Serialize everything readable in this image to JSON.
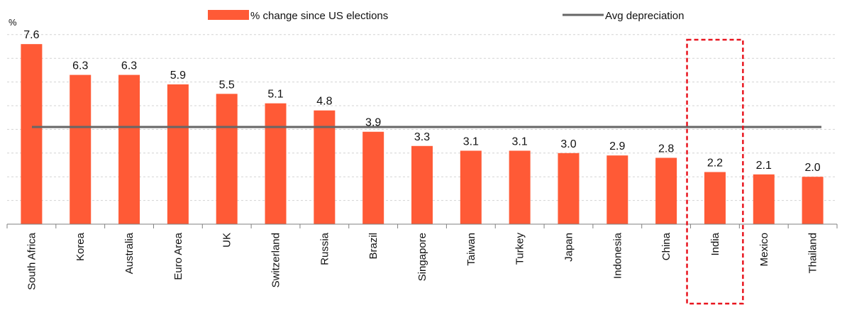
{
  "chart_data": {
    "type": "bar",
    "unit_label": "%",
    "categories": [
      "South Africa",
      "Korea",
      "Australia",
      "Euro Area",
      "UK",
      "Switzerland",
      "Russia",
      "Brazil",
      "Singapore",
      "Taiwan",
      "Turkey",
      "Japan",
      "Indonesia",
      "China",
      "India",
      "Mexico",
      "Thailand"
    ],
    "series": [
      {
        "name": "% change since US elections",
        "values": [
          7.6,
          6.3,
          6.3,
          5.9,
          5.5,
          5.1,
          4.8,
          3.9,
          3.3,
          3.1,
          3.1,
          3.0,
          2.9,
          2.8,
          2.2,
          2.1,
          2.0
        ],
        "color": "#ff5a36"
      }
    ],
    "data_labels": [
      "7.6",
      "6.3",
      "6.3",
      "5.9",
      "5.5",
      "5.1",
      "4.8",
      "3.9",
      "3.3",
      "3.1",
      "3.1",
      "3.0",
      "2.9",
      "2.8",
      "2.2",
      "2.1",
      "2.0"
    ],
    "reference_line": {
      "name": "Avg depreciation",
      "value": 4.1,
      "color": "#666666"
    },
    "ylim": [
      0,
      9
    ],
    "gridlines": [
      1,
      2,
      3,
      4,
      5,
      6,
      7,
      8
    ],
    "grid": true,
    "y_tick_labels_shown": false,
    "legend_position": "top",
    "highlight": {
      "category": "India",
      "style": "red dashed box",
      "color": "#e8141e"
    }
  }
}
